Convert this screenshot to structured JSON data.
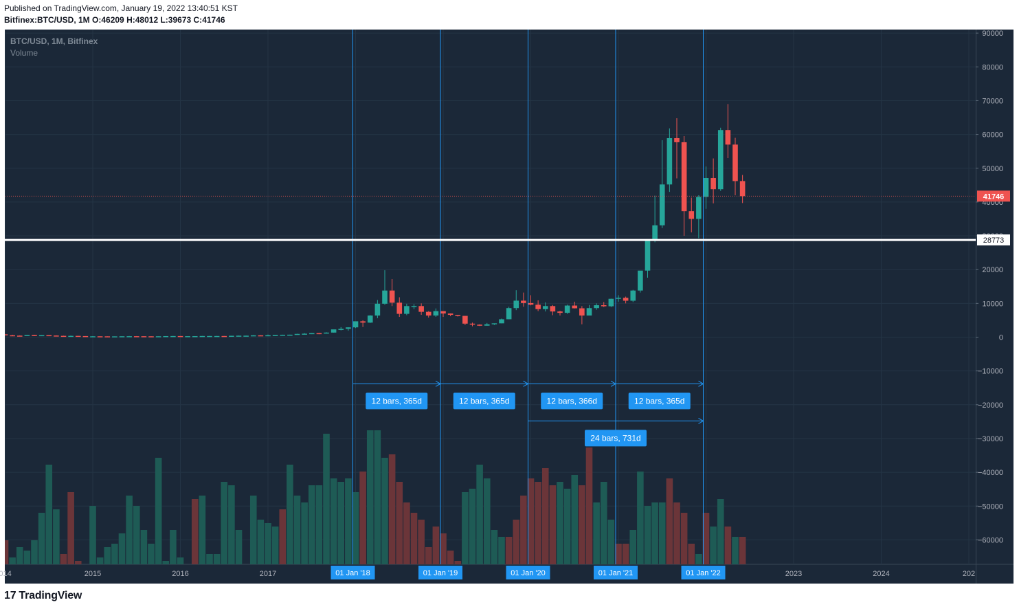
{
  "header": {
    "published": "Published on TradingView.com, January 19, 2022 13:40:51 KST",
    "symbol": "Bitfinex:BTC/USD, 1M",
    "ohlc": {
      "o_label": "O:",
      "o": "46209",
      "h_label": "H:",
      "h": "48012",
      "l_label": "L:",
      "l": "39673",
      "c_label": "C:",
      "c": "41746"
    }
  },
  "legend": {
    "symbol": "BTC/USD, 1M, Bitfinex",
    "indicator": "Volume"
  },
  "brand": {
    "logo": "17",
    "name": "TradingView"
  },
  "colors": {
    "bg": "#1b2838",
    "up": "#26a69a",
    "down": "#ef5350",
    "vol_up": "#1e5b55",
    "vol_down": "#6b3539",
    "tool": "#2196f3",
    "line": "#ffffff",
    "grid": "#243445"
  },
  "chart_data": {
    "type": "candlestick",
    "start": "2013-06",
    "ylim": [
      -66000,
      91000
    ],
    "yticks": [
      90000,
      80000,
      70000,
      60000,
      50000,
      40000,
      30000,
      20000,
      10000,
      0,
      -10000,
      -20000,
      -30000,
      -40000,
      -50000,
      -60000
    ],
    "ytick_labels": [
      "90000",
      "80000",
      "70000",
      "60000",
      "50000",
      "40000",
      "30000",
      "20000",
      "10000",
      "0",
      "−10000",
      "−20000",
      "−30000",
      "−40000",
      "−50000",
      "−60000"
    ],
    "xtick_labels": [
      {
        "label": "014",
        "date": "2014-01"
      },
      {
        "label": "2015",
        "date": "2015-01"
      },
      {
        "label": "2016",
        "date": "2016-01"
      },
      {
        "label": "2017",
        "date": "2017-01"
      },
      {
        "label": "2023",
        "date": "2023-01"
      },
      {
        "label": "2024",
        "date": "2024-01"
      },
      {
        "label": "202",
        "date": "2025-01"
      }
    ],
    "date_markers": [
      {
        "label": "01 Jan '18",
        "date": "2018-01"
      },
      {
        "label": "01 Jan '19",
        "date": "2019-01"
      },
      {
        "label": "01 Jan '20",
        "date": "2020-01"
      },
      {
        "label": "01 Jan '21",
        "date": "2021-01"
      },
      {
        "label": "01 Jan '22",
        "date": "2022-01"
      }
    ],
    "horizontal_line": {
      "value": 28773,
      "label": "28773"
    },
    "last_price": {
      "value": 41746,
      "label": "41746"
    },
    "measurements": [
      {
        "from": "2018-01",
        "to": "2019-01",
        "label": "12 bars, 365d",
        "level": -13800
      },
      {
        "from": "2019-01",
        "to": "2020-01",
        "label": "12 bars, 365d",
        "level": -13800
      },
      {
        "from": "2020-01",
        "to": "2021-01",
        "label": "12 bars, 366d",
        "level": -13800
      },
      {
        "from": "2021-01",
        "to": "2022-01",
        "label": "12 bars, 365d",
        "level": -13800
      },
      {
        "from": "2020-01",
        "to": "2022-01",
        "label": "24 bars, 731d",
        "level": -24800
      }
    ],
    "ohlc": [
      [
        100,
        130,
        90,
        120
      ],
      [
        120,
        140,
        90,
        110
      ],
      [
        110,
        150,
        100,
        140
      ],
      [
        140,
        200,
        130,
        190
      ],
      [
        190,
        1100,
        180,
        900
      ],
      [
        900,
        1150,
        400,
        730
      ],
      [
        730,
        980,
        700,
        850
      ],
      [
        850,
        850,
        500,
        560
      ],
      [
        560,
        700,
        450,
        450
      ],
      [
        450,
        520,
        350,
        440
      ],
      [
        440,
        640,
        440,
        620
      ],
      [
        620,
        680,
        500,
        580
      ],
      [
        580,
        620,
        550,
        590
      ],
      [
        590,
        600,
        450,
        480
      ],
      [
        480,
        520,
        380,
        390
      ],
      [
        390,
        420,
        280,
        340
      ],
      [
        340,
        470,
        320,
        380
      ],
      [
        380,
        390,
        150,
        320
      ],
      [
        320,
        320,
        165,
        220
      ],
      [
        220,
        310,
        200,
        250
      ],
      [
        250,
        260,
        200,
        240
      ],
      [
        240,
        260,
        220,
        230
      ],
      [
        230,
        240,
        210,
        230
      ],
      [
        230,
        290,
        230,
        260
      ],
      [
        260,
        340,
        260,
        280
      ],
      [
        280,
        320,
        260,
        270
      ],
      [
        270,
        290,
        210,
        250
      ],
      [
        250,
        270,
        230,
        240
      ],
      [
        240,
        270,
        240,
        260
      ],
      [
        260,
        320,
        250,
        310
      ],
      [
        310,
        360,
        300,
        330
      ],
      [
        330,
        340,
        270,
        280
      ],
      [
        280,
        300,
        280,
        290
      ],
      [
        290,
        310,
        270,
        300
      ],
      [
        300,
        350,
        300,
        340
      ],
      [
        340,
        360,
        300,
        340
      ],
      [
        340,
        360,
        320,
        340
      ],
      [
        340,
        350,
        300,
        310
      ],
      [
        310,
        420,
        300,
        410
      ],
      [
        410,
        460,
        410,
        440
      ],
      [
        440,
        450,
        400,
        440
      ],
      [
        440,
        590,
        430,
        540
      ],
      [
        540,
        590,
        520,
        530
      ],
      [
        530,
        760,
        530,
        570
      ],
      [
        570,
        590,
        570,
        610
      ],
      [
        610,
        730,
        610,
        700
      ],
      [
        700,
        740,
        680,
        730
      ],
      [
        730,
        980,
        730,
        960
      ],
      [
        960,
        1190,
        750,
        1030
      ],
      [
        1030,
        1200,
        900,
        1190
      ],
      [
        1190,
        1240,
        890,
        1080
      ],
      [
        1080,
        1450,
        1070,
        1350
      ],
      [
        1350,
        2000,
        1320,
        2300
      ],
      [
        2300,
        2980,
        2000,
        2450
      ],
      [
        2450,
        2900,
        1900,
        2900
      ],
      [
        2900,
        4500,
        2700,
        4700
      ],
      [
        4700,
        5000,
        3000,
        4300
      ],
      [
        4300,
        6500,
        4200,
        6400
      ],
      [
        6400,
        11000,
        5600,
        9900
      ],
      [
        9900,
        19800,
        9600,
        13800
      ],
      [
        13800,
        17200,
        9200,
        10200
      ],
      [
        10200,
        11800,
        6000,
        6900
      ],
      [
        6900,
        9900,
        6500,
        9200
      ],
      [
        9200,
        9800,
        8300,
        9200
      ],
      [
        9200,
        10000,
        6600,
        7500
      ],
      [
        7500,
        7700,
        5800,
        6400
      ],
      [
        6400,
        8500,
        6000,
        7700
      ],
      [
        7700,
        7400,
        6000,
        7000
      ],
      [
        7000,
        7000,
        6200,
        6600
      ],
      [
        6600,
        6500,
        6100,
        6300
      ],
      [
        6300,
        6300,
        3600,
        4000
      ],
      [
        4000,
        4300,
        3200,
        3700
      ],
      [
        3700,
        3800,
        3300,
        3400
      ],
      [
        3400,
        4200,
        3400,
        3800
      ],
      [
        3800,
        4100,
        3600,
        4100
      ],
      [
        4100,
        5500,
        4100,
        5300
      ],
      [
        5300,
        9000,
        5300,
        8600
      ],
      [
        8600,
        13900,
        8000,
        10800
      ],
      [
        10800,
        13200,
        9000,
        10100
      ],
      [
        10100,
        12400,
        9400,
        9600
      ],
      [
        9600,
        10900,
        7700,
        8300
      ],
      [
        8300,
        10300,
        7600,
        9200
      ],
      [
        9200,
        9500,
        6500,
        7600
      ],
      [
        7600,
        7800,
        6400,
        7200
      ],
      [
        7200,
        9600,
        6900,
        9350
      ],
      [
        9350,
        10500,
        8500,
        8540
      ],
      [
        8540,
        9200,
        3800,
        6400
      ],
      [
        6400,
        9500,
        6400,
        8600
      ],
      [
        8600,
        10000,
        8100,
        9450
      ],
      [
        9450,
        10400,
        8900,
        9140
      ],
      [
        9140,
        11400,
        8900,
        11350
      ],
      [
        11350,
        12400,
        10500,
        11650
      ],
      [
        11650,
        12000,
        10000,
        10780
      ],
      [
        10780,
        14000,
        10400,
        13800
      ],
      [
        13800,
        19500,
        13200,
        19700
      ],
      [
        19700,
        29000,
        17600,
        29000
      ],
      [
        29000,
        41900,
        28100,
        33100
      ],
      [
        33100,
        58300,
        32300,
        45200
      ],
      [
        45200,
        61800,
        43000,
        58900
      ],
      [
        58900,
        64800,
        47000,
        57700
      ],
      [
        57700,
        59500,
        30000,
        37300
      ],
      [
        37300,
        41300,
        31000,
        35000
      ],
      [
        35000,
        42000,
        29300,
        41500
      ],
      [
        41500,
        50500,
        38000,
        47100
      ],
      [
        47100,
        52900,
        39600,
        43800
      ],
      [
        43800,
        62000,
        43300,
        61300
      ],
      [
        61300,
        69000,
        53000,
        57000
      ],
      [
        57000,
        59000,
        42000,
        46200
      ],
      [
        46200,
        48000,
        39700,
        41746
      ]
    ],
    "volume_bars": [
      [
        1,
        24
      ],
      [
        1,
        29
      ],
      [
        0,
        31
      ],
      [
        1,
        31
      ],
      [
        1,
        36
      ],
      [
        0,
        37
      ],
      [
        0,
        31
      ],
      [
        0,
        32
      ],
      [
        1,
        37
      ],
      [
        1,
        34
      ],
      [
        1,
        35
      ],
      [
        1,
        32
      ],
      [
        1,
        24
      ],
      [
        1,
        10
      ],
      [
        1,
        23
      ],
      [
        0,
        36
      ],
      [
        0,
        18
      ],
      [
        0,
        38
      ],
      [
        1,
        45
      ],
      [
        1,
        22
      ],
      [
        1,
        37
      ],
      [
        1,
        34
      ],
      [
        1,
        33
      ],
      [
        1,
        30
      ],
      [
        1,
        19
      ],
      [
        1,
        22
      ],
      [
        1,
        29
      ],
      [
        1,
        33
      ],
      [
        1,
        8
      ],
      [
        1,
        38
      ],
      [
        1,
        29
      ],
      [
        1,
        37
      ],
      [
        1,
        40
      ],
      [
        0,
        20
      ],
      [
        1,
        19
      ],
      [
        1,
        36
      ],
      [
        1,
        36
      ],
      [
        1,
        15
      ],
      [
        1,
        16
      ],
      [
        1,
        29
      ],
      [
        1,
        41
      ],
      [
        1,
        19
      ],
      [
        1,
        26
      ],
      [
        1,
        27
      ],
      [
        1,
        28
      ],
      [
        0,
        23
      ],
      [
        1,
        10
      ],
      [
        1,
        19
      ],
      [
        1,
        21
      ],
      [
        1,
        16
      ],
      [
        1,
        16
      ],
      [
        1,
        1
      ],
      [
        1,
        14
      ],
      [
        1,
        15
      ],
      [
        1,
        14
      ],
      [
        1,
        18
      ],
      [
        0,
        12
      ],
      [
        1,
        0
      ],
      [
        1,
        0
      ],
      [
        1,
        8
      ],
      [
        0,
        7
      ],
      [
        0,
        15
      ],
      [
        0,
        21
      ],
      [
        0,
        24
      ],
      [
        0,
        26
      ],
      [
        0,
        34
      ],
      [
        0,
        28
      ],
      [
        0,
        30
      ],
      [
        0,
        35
      ],
      [
        0,
        38
      ],
      [
        1,
        18
      ],
      [
        1,
        17
      ],
      [
        1,
        10
      ],
      [
        1,
        14
      ],
      [
        1,
        29
      ],
      [
        1,
        31
      ],
      [
        0,
        31
      ],
      [
        0,
        26
      ],
      [
        0,
        19
      ],
      [
        0,
        14
      ],
      [
        0,
        15
      ],
      [
        0,
        11
      ],
      [
        0,
        16
      ],
      [
        1,
        15
      ],
      [
        1,
        17
      ],
      [
        1,
        13
      ],
      [
        0,
        16
      ],
      [
        0,
        5
      ],
      [
        1,
        21
      ],
      [
        1,
        15
      ],
      [
        1,
        26
      ],
      [
        0,
        33
      ],
      [
        0,
        33
      ],
      [
        1,
        29
      ],
      [
        1,
        12
      ],
      [
        1,
        22
      ],
      [
        1,
        21
      ],
      [
        1,
        21
      ],
      [
        0,
        14
      ],
      [
        0,
        21
      ],
      [
        0,
        24
      ],
      [
        0,
        33
      ],
      [
        1,
        36
      ],
      [
        0,
        24
      ],
      [
        1,
        28
      ],
      [
        1,
        20
      ],
      [
        0,
        28
      ],
      [
        1,
        31
      ],
      [
        0,
        31
      ]
    ]
  }
}
